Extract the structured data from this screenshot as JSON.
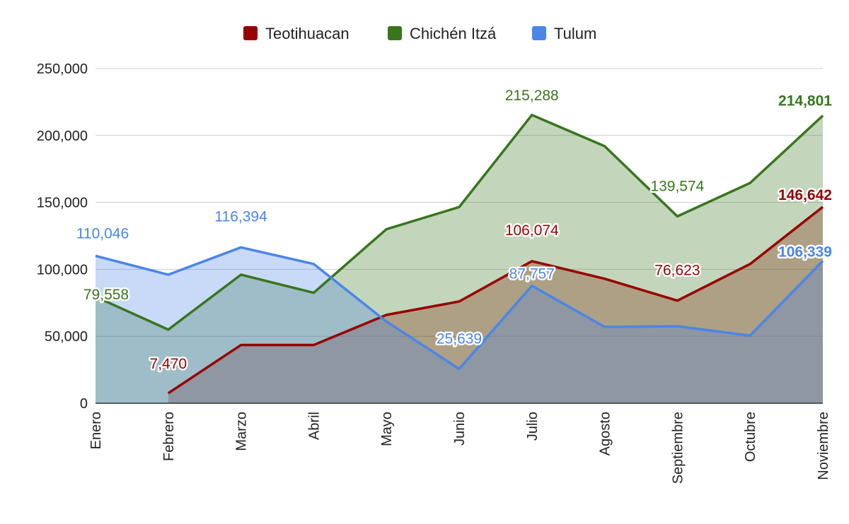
{
  "chart_data": {
    "type": "area",
    "categories": [
      "Enero",
      "Febrero",
      "Marzo",
      "Abril",
      "Mayo",
      "Junio",
      "Julio",
      "Agosto",
      "Septiembre",
      "Octubre",
      "Noviembre"
    ],
    "series": [
      {
        "name": "Teotihuacan",
        "color": "#990000",
        "values": [
          null,
          7470,
          43500,
          43500,
          66000,
          76000,
          106074,
          93000,
          76623,
          104000,
          146642
        ]
      },
      {
        "name": "Chichén Itzá",
        "color": "#38761d",
        "values": [
          79558,
          55000,
          96000,
          82500,
          130000,
          146500,
          215288,
          192000,
          139574,
          164500,
          214801
        ]
      },
      {
        "name": "Tulum",
        "color": "#4a86e8",
        "values": [
          110046,
          96000,
          116394,
          104000,
          61000,
          25639,
          87757,
          57000,
          57500,
          50500,
          106339
        ]
      }
    ],
    "data_labels": [
      {
        "series": 0,
        "index": 1,
        "text": "7,470",
        "bold": false
      },
      {
        "series": 0,
        "index": 6,
        "text": "106,074",
        "bold": false
      },
      {
        "series": 0,
        "index": 8,
        "text": "76,623",
        "bold": false
      },
      {
        "series": 0,
        "index": 10,
        "text": "146,642",
        "bold": true
      },
      {
        "series": 1,
        "index": 0,
        "text": "79,558",
        "bold": false
      },
      {
        "series": 1,
        "index": 6,
        "text": "215,288",
        "bold": false
      },
      {
        "series": 1,
        "index": 8,
        "text": "139,574",
        "bold": false
      },
      {
        "series": 1,
        "index": 10,
        "text": "214,801",
        "bold": true
      },
      {
        "series": 2,
        "index": 0,
        "text": "110,046",
        "bold": false
      },
      {
        "series": 2,
        "index": 2,
        "text": "116,394",
        "bold": false
      },
      {
        "series": 2,
        "index": 5,
        "text": "25,639",
        "bold": false
      },
      {
        "series": 2,
        "index": 6,
        "text": "87,757",
        "bold": false
      },
      {
        "series": 2,
        "index": 10,
        "text": "106,339",
        "bold": true
      }
    ],
    "y_ticks": [
      "0",
      "50,000",
      "100,000",
      "150,000",
      "200,000",
      "250,000"
    ],
    "y_tick_values": [
      0,
      50000,
      100000,
      150000,
      200000,
      250000
    ],
    "ylim": [
      0,
      250000
    ],
    "grid": true,
    "legend_position": "top",
    "title": "",
    "xlabel": "",
    "ylabel": ""
  }
}
